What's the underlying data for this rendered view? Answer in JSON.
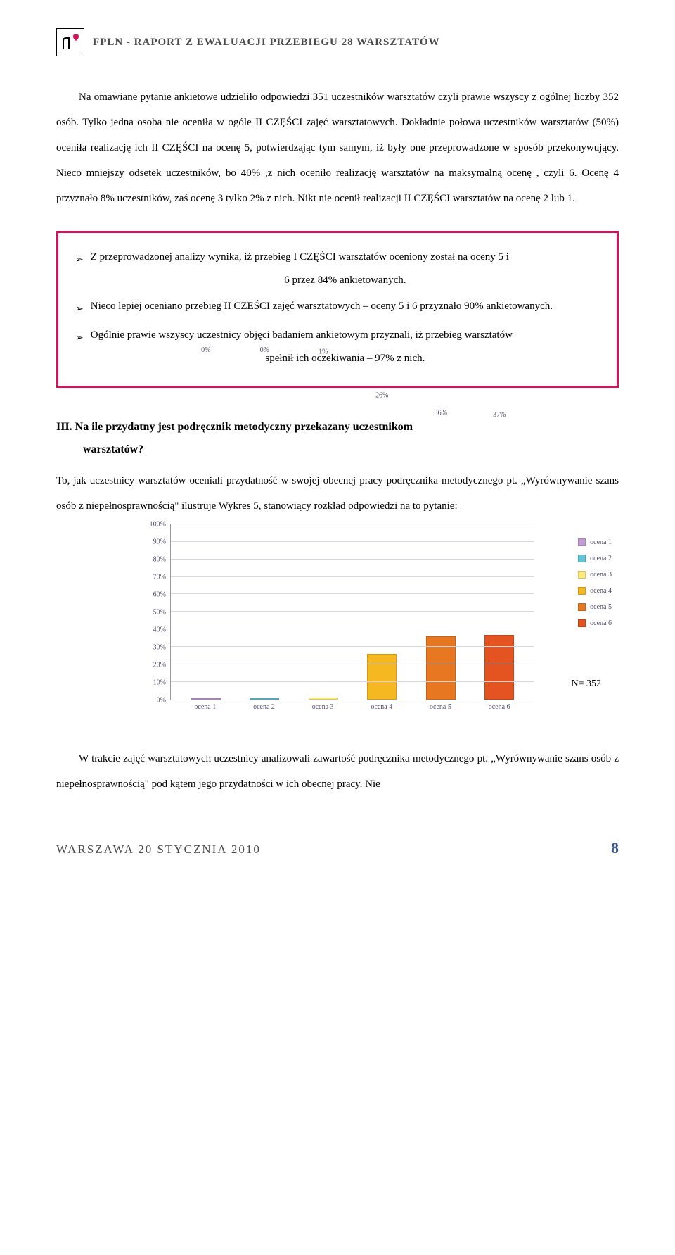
{
  "header": {
    "title": "FPLN - RAPORT Z EWALUACJI PRZEBIEGU 28 WARSZTATÓW"
  },
  "body_paragraph": "Na omawiane pytanie ankietowe udzieliło odpowiedzi 351 uczestników warsztatów czyli prawie wszyscy z ogólnej liczby 352 osób. Tylko jedna osoba nie oceniła w ogóle II CZĘŚCI zajęć warsztatowych. Dokładnie połowa uczestników warsztatów (50%) oceniła realizację ich II CZĘŚCI na ocenę 5, potwierdzając tym samym, iż były one przeprowadzone w sposób przekonywujący. Nieco mniejszy odsetek uczestników, bo 40% ,z nich oceniło realizację warsztatów na maksymalną ocenę , czyli 6. Ocenę 4 przyznało 8% uczestników, zaś ocenę 3 tylko 2% z nich. Nikt nie ocenił realizacji II CZĘŚCI warsztatów na ocenę 2 lub 1.",
  "callout": {
    "items": [
      {
        "text": "Z przeprowadzonej analizy wynika, iż przebieg I CZĘŚCI warsztatów oceniony został na oceny 5 i",
        "cont": "6 przez 84% ankietowanych."
      },
      {
        "text": "Nieco lepiej oceniano przebieg II CZEŚCI zajęć warsztatowych – oceny 5 i 6 przyznało 90% ankietowanych."
      },
      {
        "text": "Ogólnie prawie wszyscy uczestnicy objęci badaniem ankietowym przyznali, iż przebieg warsztatów",
        "cont": "spełnił ich oczekiwania – 97% z nich."
      }
    ],
    "border_color": "#d4145a"
  },
  "section3": {
    "title_line1": "III. Na ile przydatny jest podręcznik metodyczny przekazany uczestnikom",
    "title_line2": "warsztatów?",
    "para": "To, jak uczestnicy warsztatów oceniali przydatność w swojej obecnej pracy podręcznika metodycznego pt. „Wyrównywanie szans osób z niepełnosprawnością\" ilustruje Wykres 5, stanowiący rozkład odpowiedzi na to pytanie:"
  },
  "chart": {
    "type": "bar",
    "categories": [
      "ocena 1",
      "ocena 2",
      "ocena 3",
      "ocena 4",
      "ocena 5",
      "ocena 6"
    ],
    "values_pct": [
      0,
      0,
      1,
      26,
      36,
      37
    ],
    "value_labels": [
      "0%",
      "0%",
      "1%",
      "26%",
      "36%",
      "37%"
    ],
    "bar_colors": [
      "#c49bd6",
      "#61c5d6",
      "#fde97a",
      "#f5b820",
      "#e87722",
      "#e35420"
    ],
    "y_ticks": [
      0,
      10,
      20,
      30,
      40,
      50,
      60,
      70,
      80,
      90,
      100
    ],
    "y_tick_labels": [
      "0%",
      "10%",
      "20%",
      "30%",
      "40%",
      "50%",
      "60%",
      "70%",
      "80%",
      "90%",
      "100%"
    ],
    "ylim": [
      0,
      100
    ],
    "grid_color": "#d8d6e0",
    "axis_color": "#999999",
    "label_color": "#514d6a",
    "label_fontsize": 10,
    "background_color": "#ffffff",
    "legend": [
      {
        "label": "ocena 1",
        "color": "#c49bd6"
      },
      {
        "label": "ocena 2",
        "color": "#61c5d6"
      },
      {
        "label": "ocena 3",
        "color": "#fde97a"
      },
      {
        "label": "ocena 4",
        "color": "#f5b820"
      },
      {
        "label": "ocena 5",
        "color": "#e87722"
      },
      {
        "label": "ocena 6",
        "color": "#e35420"
      }
    ],
    "n_label": "N= 352"
  },
  "closing_paragraph": "W trakcie zajęć warsztatowych uczestnicy analizowali zawartość podręcznika metodycznego pt. „Wyrównywanie szans osób z niepełnosprawnością\" pod kątem jego przydatności w ich obecnej pracy. Nie",
  "footer": {
    "text": "WARSZAWA 20 STYCZNIA 2010",
    "page": "8"
  }
}
